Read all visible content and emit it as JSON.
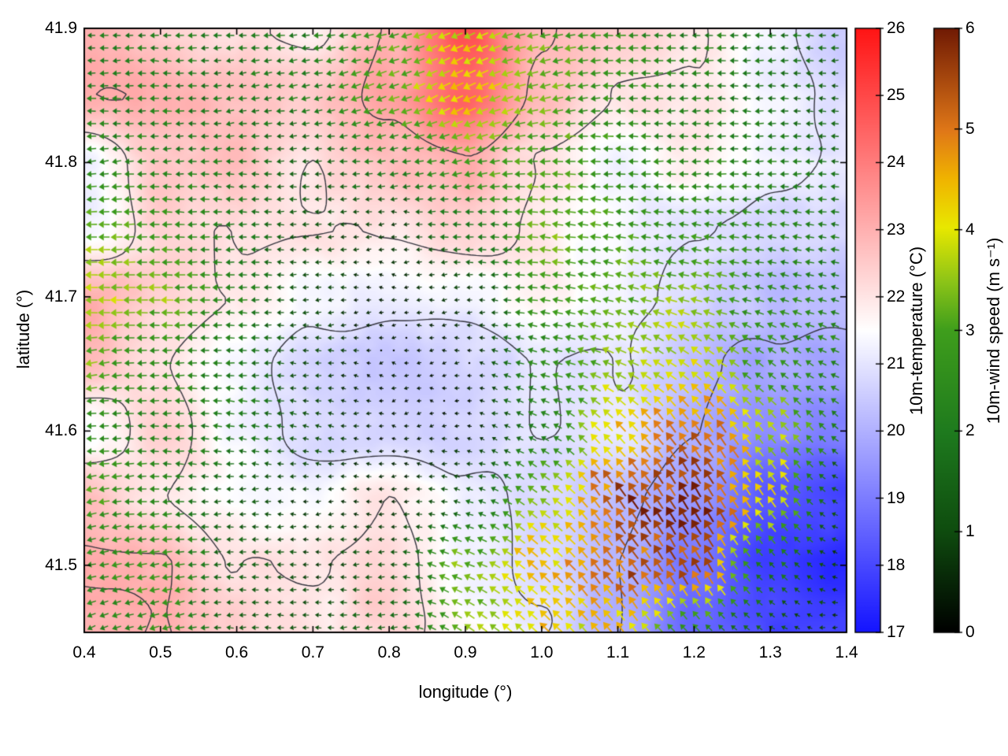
{
  "chart_data": {
    "type": "heatmap",
    "subtype": "temperature_field_with_wind_vectors_and_contours",
    "title": "",
    "xlabel": "longitude (°)",
    "ylabel": "latitude (°)",
    "xlim": [
      0.4,
      1.4
    ],
    "ylim": [
      41.45,
      41.9
    ],
    "xticks": [
      "0.4",
      "0.5",
      "0.6",
      "0.7",
      "0.8",
      "0.9",
      "1.0",
      "1.1",
      "1.2",
      "1.3",
      "1.4"
    ],
    "yticks": [
      "41.5",
      "41.6",
      "41.7",
      "41.8",
      "41.9"
    ],
    "grid": false,
    "legend_position": "none",
    "colorbars": [
      {
        "id": "temperature",
        "label": "10m-temperature (°C)",
        "range": [
          17,
          26
        ],
        "ticks": [
          "17",
          "18",
          "19",
          "20",
          "21",
          "22",
          "23",
          "24",
          "25",
          "26"
        ],
        "palette": [
          [
            0,
            "#1414ff"
          ],
          [
            0.5,
            "#ffffff"
          ],
          [
            1,
            "#ff1414"
          ]
        ]
      },
      {
        "id": "wind_speed",
        "label": "10m-wind speed (m s⁻¹)",
        "range": [
          0,
          6
        ],
        "ticks": [
          "0",
          "1",
          "2",
          "3",
          "4",
          "5",
          "6"
        ],
        "palette": [
          [
            0,
            "#000000"
          ],
          [
            0.17,
            "#0f4d0f"
          ],
          [
            0.33,
            "#1e7a1e"
          ],
          [
            0.5,
            "#3f9e1c"
          ],
          [
            0.58,
            "#8cc418"
          ],
          [
            0.67,
            "#e8e800"
          ],
          [
            0.75,
            "#f0b400"
          ],
          [
            0.83,
            "#e07818"
          ],
          [
            1,
            "#701a04"
          ]
        ]
      }
    ],
    "temperature_grid": {
      "lon": [
        0.4,
        0.5,
        0.6,
        0.7,
        0.8,
        0.9,
        1.0,
        1.1,
        1.2,
        1.3,
        1.4
      ],
      "lat": [
        41.45,
        41.5,
        41.55,
        41.6,
        41.65,
        41.7,
        41.75,
        41.8,
        41.85,
        41.9
      ],
      "values_c": [
        [
          23.0,
          23.0,
          22.5,
          22.0,
          22.4,
          21.5,
          21.0,
          20.0,
          18.5,
          18.0,
          18.0
        ],
        [
          23.0,
          23.0,
          22.0,
          22.0,
          22.3,
          21.3,
          20.8,
          20.0,
          19.0,
          17.8,
          17.5
        ],
        [
          22.8,
          22.0,
          21.5,
          21.3,
          22.0,
          21.2,
          20.8,
          20.2,
          19.5,
          18.2,
          18.0
        ],
        [
          21.3,
          22.4,
          21.4,
          20.7,
          20.6,
          20.6,
          21.0,
          21.0,
          20.0,
          19.3,
          19.0
        ],
        [
          22.8,
          22.0,
          21.3,
          20.7,
          20.5,
          20.6,
          21.0,
          21.0,
          20.2,
          19.8,
          19.8
        ],
        [
          23.0,
          22.4,
          22.0,
          21.3,
          21.2,
          21.3,
          21.8,
          21.2,
          20.8,
          20.3,
          20.2
        ],
        [
          21.3,
          22.3,
          22.0,
          22.0,
          22.0,
          22.3,
          21.9,
          21.3,
          21.0,
          20.8,
          20.8
        ],
        [
          21.2,
          22.5,
          22.8,
          22.0,
          22.7,
          23.0,
          22.0,
          21.4,
          21.8,
          21.2,
          21.0
        ],
        [
          23.0,
          23.0,
          22.8,
          22.5,
          23.2,
          24.5,
          22.8,
          22.0,
          22.0,
          21.3,
          20.8
        ],
        [
          23.0,
          22.5,
          22.2,
          21.8,
          23.0,
          24.8,
          23.0,
          22.5,
          22.0,
          21.2,
          20.5
        ]
      ]
    },
    "wind_grid": {
      "lon": [
        0.4,
        0.5,
        0.6,
        0.7,
        0.8,
        0.9,
        1.0,
        1.1,
        1.2,
        1.3,
        1.4
      ],
      "lat": [
        41.45,
        41.5,
        41.55,
        41.6,
        41.65,
        41.7,
        41.75,
        41.8,
        41.85,
        41.9
      ],
      "u_ms": [
        [
          -2.0,
          -2.4,
          -1.5,
          -1.2,
          -1.5,
          -2.8,
          -3.0,
          -2.8,
          -1.8,
          -1.0,
          -0.8
        ],
        [
          -2.4,
          -2.7,
          -1.5,
          -1.0,
          -1.3,
          -3.0,
          -3.2,
          -3.0,
          -2.8,
          -1.4,
          -0.8
        ],
        [
          -2.7,
          -2.3,
          -1.4,
          -0.8,
          -0.6,
          -1.5,
          -2.8,
          -3.0,
          -3.0,
          -2.4,
          -0.9
        ],
        [
          -2.5,
          -2.2,
          -2.0,
          -1.2,
          -0.4,
          -0.5,
          -2.0,
          -2.8,
          -2.9,
          -2.4,
          -1.6
        ],
        [
          -3.1,
          -2.5,
          -2.0,
          -1.0,
          -0.3,
          -0.4,
          -2.4,
          -3.2,
          -3.2,
          -2.3,
          -2.0
        ],
        [
          -3.8,
          -3.4,
          -2.2,
          -1.0,
          -0.4,
          -0.8,
          -2.8,
          -3.1,
          -3.3,
          -2.4,
          -2.1
        ],
        [
          -3.3,
          -2.8,
          -2.0,
          -1.2,
          -0.8,
          -2.0,
          -3.2,
          -2.8,
          -2.6,
          -2.3,
          -2.0
        ],
        [
          -2.5,
          -2.2,
          -1.8,
          -1.5,
          -2.0,
          -2.8,
          -3.0,
          -2.6,
          -2.4,
          -2.2,
          -1.8
        ],
        [
          -2.2,
          -2.0,
          -1.8,
          -2.0,
          -3.0,
          -3.8,
          -3.2,
          -2.5,
          -2.2,
          -1.8,
          -1.5
        ],
        [
          -1.8,
          -2.0,
          -1.8,
          -2.2,
          -2.9,
          -3.6,
          -3.1,
          -2.6,
          -2.2,
          -1.8,
          -1.5
        ]
      ],
      "v_ms": [
        [
          -0.8,
          -0.6,
          0,
          0,
          -0.2,
          1.8,
          2.8,
          3.5,
          1.7,
          0.6,
          0
        ],
        [
          -0.5,
          -0.5,
          0,
          0,
          0,
          1.3,
          2.9,
          4.2,
          4.7,
          1.4,
          0.2
        ],
        [
          -0.6,
          0,
          0,
          0,
          0,
          0.3,
          2.1,
          4.4,
          5.0,
          3.2,
          0.4
        ],
        [
          0,
          0,
          0.3,
          0.2,
          0,
          0,
          0.9,
          3.1,
          4.3,
          2.9,
          1.2
        ],
        [
          -0.5,
          0,
          0,
          0,
          0,
          0,
          0.7,
          1.4,
          2.4,
          1.6,
          0.9
        ],
        [
          0,
          0,
          0,
          0,
          0,
          0,
          0.3,
          0.8,
          0.9,
          0.7,
          0.6
        ],
        [
          0,
          0,
          0,
          0,
          0,
          0,
          0.3,
          0.4,
          0.3,
          0.3,
          0.3
        ],
        [
          -0.3,
          0,
          0,
          0,
          -0.3,
          -0.5,
          0,
          0,
          0,
          0,
          0
        ],
        [
          0,
          0,
          -0.3,
          -0.4,
          -1.1,
          -1.8,
          -0.8,
          0,
          0,
          0,
          0
        ],
        [
          0,
          0,
          0,
          -0.3,
          -0.8,
          -1.6,
          -0.6,
          0,
          0,
          0,
          0
        ]
      ]
    },
    "contours": {
      "levels_c": [
        20,
        21,
        22,
        23
      ],
      "color": "#35353f"
    }
  }
}
